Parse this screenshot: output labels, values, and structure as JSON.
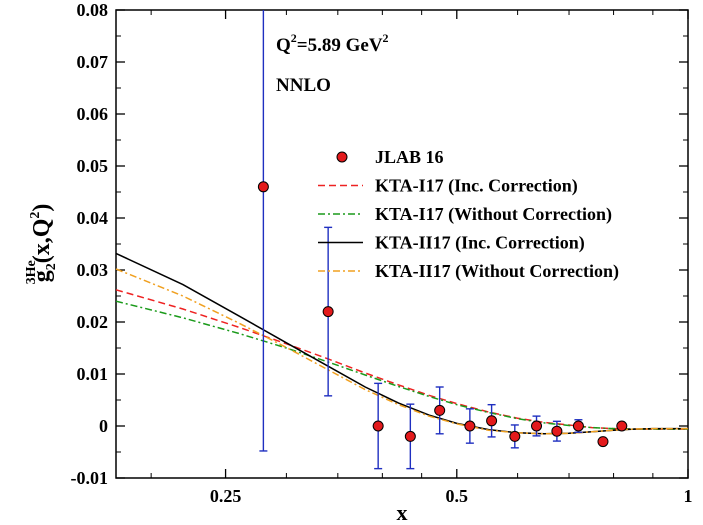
{
  "chart_data": {
    "type": "line",
    "x_scale": "log",
    "xlim": [
      0.18,
      1.0
    ],
    "ylim": [
      -0.01,
      0.08
    ],
    "x_ticks": [
      0.25,
      0.5,
      1
    ],
    "x_tick_labels": [
      "0.25",
      "0.5",
      "1"
    ],
    "y_ticks": [
      -0.01,
      0,
      0.01,
      0.02,
      0.03,
      0.04,
      0.05,
      0.06,
      0.07,
      0.08
    ],
    "y_tick_labels": [
      "-0.01",
      "0",
      "0.01",
      "0.02",
      "0.03",
      "0.04",
      "0.05",
      "0.06",
      "0.07",
      "0.08"
    ],
    "xlabel": "x",
    "ylabel": {
      "base": "g",
      "sub": "2",
      "pre_sup": "3",
      "sup": "He",
      "args_open": "(x,Q",
      "args_sup": "2",
      "args_close": ")"
    },
    "annotations": {
      "q2": {
        "prefix": "Q",
        "sup": "2",
        "mid": "=5.89 GeV",
        "sup2": "2"
      },
      "order": "NNLO"
    },
    "legend_position": "center-right",
    "points": {
      "name": "JLAB 16",
      "color": "#e31a1c",
      "errorbar_color": "#1f2fc0",
      "x": [
        0.28,
        0.34,
        0.395,
        0.435,
        0.475,
        0.52,
        0.555,
        0.595,
        0.635,
        0.675,
        0.72,
        0.775,
        0.82
      ],
      "y": [
        0.046,
        0.022,
        0.0,
        -0.002,
        0.003,
        0.0,
        0.001,
        -0.002,
        0.0,
        -0.001,
        0.0,
        -0.003,
        0.0
      ],
      "yerr": [
        0.0508,
        0.0162,
        0.0082,
        0.0062,
        0.0045,
        0.0033,
        0.0031,
        0.0022,
        0.0019,
        0.0019,
        0.0012,
        0.0,
        0.0
      ]
    },
    "series": [
      {
        "name": "KTA-I17 (Inc. Correction)",
        "color": "#ee2222",
        "dash": "7,4",
        "x": [
          0.18,
          0.22,
          0.26,
          0.3,
          0.34,
          0.38,
          0.42,
          0.46,
          0.5,
          0.55,
          0.6,
          0.65,
          0.7,
          0.75,
          0.8,
          0.85,
          0.9,
          0.95,
          1.0
        ],
        "y": [
          0.0262,
          0.0225,
          0.019,
          0.0158,
          0.0129,
          0.0102,
          0.0079,
          0.0059,
          0.0043,
          0.0027,
          0.0015,
          0.0007,
          0.0002,
          -0.0003,
          -0.0005,
          -0.0006,
          -0.0006,
          -0.0006,
          -0.0006
        ]
      },
      {
        "name": "KTA-I17 (Without Correction)",
        "color": "#1a9a1a",
        "dash": "7,3,2,3",
        "x": [
          0.18,
          0.22,
          0.26,
          0.3,
          0.34,
          0.38,
          0.42,
          0.46,
          0.5,
          0.55,
          0.6,
          0.65,
          0.7,
          0.75,
          0.8,
          0.85,
          0.9,
          0.95,
          1.0
        ],
        "y": [
          0.024,
          0.0208,
          0.0178,
          0.015,
          0.0123,
          0.0098,
          0.0076,
          0.0057,
          0.0041,
          0.0026,
          0.0014,
          0.0006,
          0.0001,
          -0.0003,
          -0.0005,
          -0.0006,
          -0.0006,
          -0.0006,
          -0.0006
        ]
      },
      {
        "name": "KTA-II17 (Inc. Correction)",
        "color": "#000000",
        "dash": "",
        "x": [
          0.18,
          0.22,
          0.26,
          0.3,
          0.34,
          0.38,
          0.42,
          0.46,
          0.5,
          0.55,
          0.6,
          0.65,
          0.7,
          0.75,
          0.8,
          0.85,
          0.9,
          0.95,
          1.0
        ],
        "y": [
          0.0332,
          0.0272,
          0.0212,
          0.016,
          0.0115,
          0.0075,
          0.0044,
          0.0021,
          0.0005,
          -0.0007,
          -0.0013,
          -0.0015,
          -0.0014,
          -0.0011,
          -0.0008,
          -0.0006,
          -0.0005,
          -0.0005,
          -0.0005
        ]
      },
      {
        "name": "KTA-II17 (Without Correction)",
        "color": "#f0a020",
        "dash": "7,3,2,3",
        "x": [
          0.18,
          0.22,
          0.26,
          0.3,
          0.34,
          0.38,
          0.42,
          0.46,
          0.5,
          0.55,
          0.6,
          0.65,
          0.7,
          0.75,
          0.8,
          0.85,
          0.9,
          0.95,
          1.0
        ],
        "y": [
          0.0302,
          0.025,
          0.0198,
          0.0151,
          0.0108,
          0.007,
          0.0041,
          0.0019,
          0.0004,
          -0.0008,
          -0.0013,
          -0.0015,
          -0.0014,
          -0.0011,
          -0.0008,
          -0.0006,
          -0.0005,
          -0.0005,
          -0.0005
        ]
      }
    ]
  }
}
